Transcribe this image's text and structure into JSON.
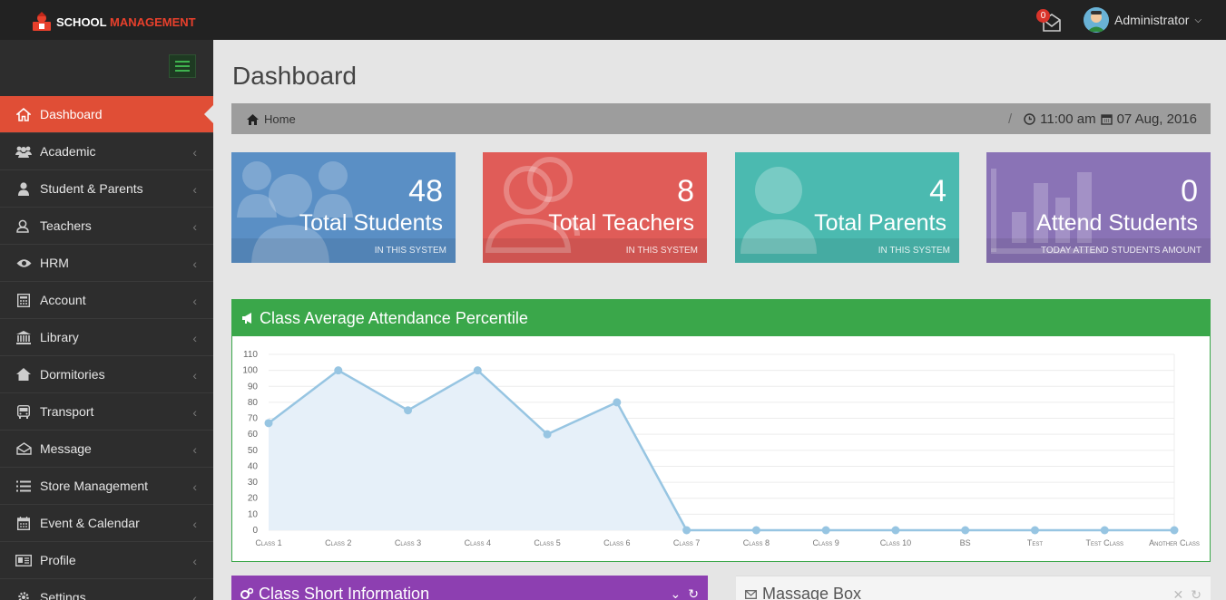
{
  "app": {
    "logo_primary": "SCHOOL",
    "logo_accent": "MANAGEMENT"
  },
  "topbar": {
    "notification_count": "0",
    "user_name": "Administrator"
  },
  "sidebar": {
    "items": [
      {
        "label": "Dashboard",
        "icon": "home-icon",
        "active": true
      },
      {
        "label": "Academic",
        "icon": "users-icon"
      },
      {
        "label": "Student & Parents",
        "icon": "user-icon"
      },
      {
        "label": "Teachers",
        "icon": "teacher-icon"
      },
      {
        "label": "HRM",
        "icon": "eye-icon"
      },
      {
        "label": "Account",
        "icon": "calculator-icon"
      },
      {
        "label": "Library",
        "icon": "bank-icon"
      },
      {
        "label": "Dormitories",
        "icon": "house-icon"
      },
      {
        "label": "Transport",
        "icon": "bus-icon"
      },
      {
        "label": "Message",
        "icon": "envelope-open-icon"
      },
      {
        "label": "Store Management",
        "icon": "list-icon"
      },
      {
        "label": "Event & Calendar",
        "icon": "calendar-icon"
      },
      {
        "label": "Profile",
        "icon": "profile-card-icon"
      },
      {
        "label": "Settings",
        "icon": "gear-icon"
      }
    ]
  },
  "main": {
    "title": "Dashboard",
    "breadcrumb": {
      "home": "Home",
      "separator": "/",
      "time": "11:00 am",
      "date": "07 Aug, 2016"
    },
    "cards": [
      {
        "number": "48",
        "title": "Total Students",
        "footer": "IN THIS SYSTEM",
        "color": "#5a8fc5"
      },
      {
        "number": "8",
        "title": "Total Teachers",
        "footer": "IN THIS SYSTEM",
        "color": "#e05c58"
      },
      {
        "number": "4",
        "title": "Total Parents",
        "footer": "IN THIS SYSTEM",
        "color": "#4bbab0"
      },
      {
        "number": "0",
        "title": "Attend Students",
        "footer": "TODAY ATTEND STUDENTS AMOUNT",
        "color": "#8a73b6"
      }
    ],
    "attendance_panel": {
      "title": "Class Average Attendance Percentile"
    },
    "class_info_panel": {
      "title": "Class Short Information"
    },
    "message_panel": {
      "title": "Massage Box"
    }
  },
  "chart_data": {
    "type": "area",
    "categories": [
      "Class 1",
      "Class 2",
      "Class 3",
      "Class 4",
      "Class 5",
      "Class 6",
      "Class 7",
      "Class 8",
      "Class 9",
      "Class 10",
      "BS",
      "Test",
      "Test Class",
      "Another Class"
    ],
    "series": [
      {
        "values": [
          67,
          100,
          75,
          100,
          60,
          80,
          0,
          0,
          0,
          0,
          0,
          0,
          0,
          0
        ]
      }
    ],
    "yticks": [
      0,
      10,
      20,
      30,
      40,
      50,
      60,
      70,
      80,
      90,
      100,
      110
    ],
    "ylim": [
      0,
      110
    ],
    "grid": true,
    "line_color": "#97c5e2",
    "fill_color": "#e6f0f9"
  }
}
